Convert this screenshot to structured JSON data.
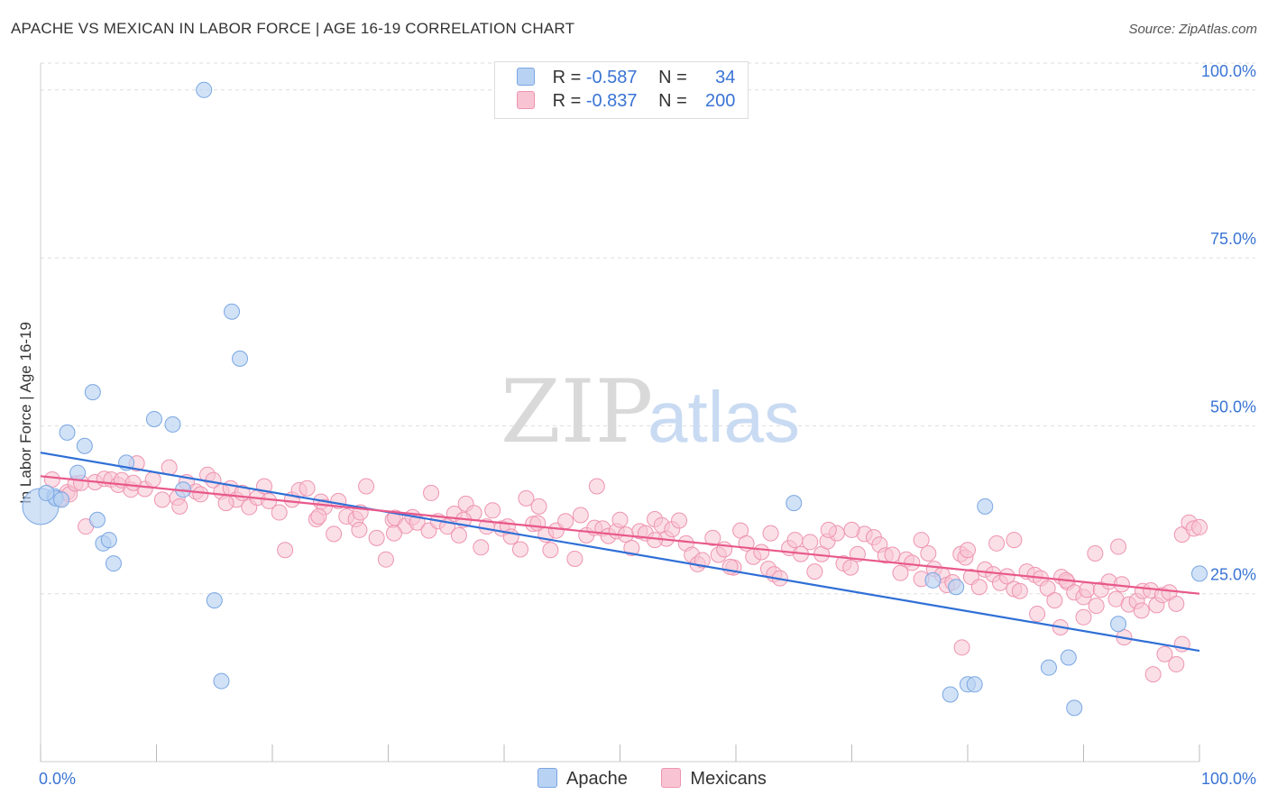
{
  "title": "APACHE VS MEXICAN IN LABOR FORCE | AGE 16-19 CORRELATION CHART",
  "source": "Source: ZipAtlas.com",
  "watermark": {
    "zip": "ZIP",
    "atlas": "atlas"
  },
  "legend": {
    "rows": [
      {
        "r_label": "R =",
        "r_value": "-0.587",
        "n_label": "N =",
        "n_value": "34",
        "color": "#a9c8f0"
      },
      {
        "r_label": "R =",
        "r_value": "-0.837",
        "n_label": "N =",
        "n_value": "200",
        "color": "#f7b8cb"
      }
    ]
  },
  "colors": {
    "apache_fill": "#b8d2f3",
    "apache_stroke": "#7aa6e2",
    "apache_line": "#2f6fd6",
    "mexican_fill": "#f8c4d3",
    "mexican_stroke": "#ee94b0",
    "mexican_line": "#e8588a",
    "tick_label": "#3a74d4",
    "grid": "#dddddd"
  },
  "chart_data": {
    "type": "scatter",
    "title": "APACHE VS MEXICAN IN LABOR FORCE | AGE 16-19 CORRELATION CHART",
    "xlabel": "",
    "ylabel": "In Labor Force | Age 16-19",
    "xlim": [
      0,
      100
    ],
    "ylim": [
      0,
      104
    ],
    "x_tick_labels": [
      "0.0%",
      "100.0%"
    ],
    "y_ticks": [
      25,
      50,
      75,
      100
    ],
    "y_tick_labels": [
      "25.0%",
      "50.0%",
      "75.0%",
      "100.0%"
    ],
    "grid": true,
    "legend_position": "bottom-center",
    "series": [
      {
        "name": "Apache",
        "points": [
          [
            0.0,
            38.0
          ],
          [
            1.2,
            39.5
          ],
          [
            1.3,
            39.2
          ],
          [
            1.8,
            39.0
          ],
          [
            2.3,
            49.0
          ],
          [
            3.2,
            43.0
          ],
          [
            3.8,
            47.0
          ],
          [
            4.5,
            55.0
          ],
          [
            4.9,
            36.0
          ],
          [
            5.4,
            32.5
          ],
          [
            5.9,
            33.0
          ],
          [
            6.3,
            29.5
          ],
          [
            7.4,
            44.5
          ],
          [
            9.8,
            51.0
          ],
          [
            11.4,
            50.2
          ],
          [
            12.3,
            40.5
          ],
          [
            14.1,
            100.0
          ],
          [
            15.0,
            24.0
          ],
          [
            15.6,
            12.0
          ],
          [
            16.5,
            67.0
          ],
          [
            17.2,
            60.0
          ],
          [
            65.0,
            38.5
          ],
          [
            77.0,
            27.0
          ],
          [
            78.5,
            10.0
          ],
          [
            79.0,
            26.0
          ],
          [
            80.0,
            11.5
          ],
          [
            80.6,
            11.5
          ],
          [
            81.5,
            38.0
          ],
          [
            87.0,
            14.0
          ],
          [
            88.7,
            15.5
          ],
          [
            89.2,
            8.0
          ],
          [
            93.0,
            20.5
          ],
          [
            100.0,
            28.0
          ],
          [
            0.5,
            40.0
          ]
        ]
      },
      {
        "name": "Mexicans",
        "points": [
          [
            1.0,
            42.0
          ],
          [
            1.7,
            39.2
          ],
          [
            2.3,
            40.1
          ],
          [
            2.5,
            39.8
          ],
          [
            3.0,
            41.4
          ],
          [
            3.9,
            35.0
          ],
          [
            4.7,
            41.6
          ],
          [
            5.5,
            42.1
          ],
          [
            6.1,
            42.0
          ],
          [
            6.7,
            41.2
          ],
          [
            7.0,
            41.9
          ],
          [
            7.8,
            40.5
          ],
          [
            8.3,
            44.4
          ],
          [
            9.0,
            40.6
          ],
          [
            9.7,
            42.0
          ],
          [
            10.5,
            39.0
          ],
          [
            11.1,
            43.8
          ],
          [
            11.8,
            39.3
          ],
          [
            12.6,
            41.6
          ],
          [
            13.4,
            40.2
          ],
          [
            13.8,
            39.8
          ],
          [
            14.4,
            42.7
          ],
          [
            14.9,
            41.9
          ],
          [
            15.6,
            40.2
          ],
          [
            16.4,
            40.7
          ],
          [
            16.9,
            39.0
          ],
          [
            17.4,
            40.0
          ],
          [
            18.0,
            37.9
          ],
          [
            18.7,
            39.3
          ],
          [
            19.3,
            41.0
          ],
          [
            19.7,
            38.8
          ],
          [
            20.6,
            37.1
          ],
          [
            21.1,
            31.5
          ],
          [
            21.7,
            39.0
          ],
          [
            22.3,
            40.4
          ],
          [
            23.0,
            40.7
          ],
          [
            23.8,
            36.1
          ],
          [
            24.2,
            38.7
          ],
          [
            24.5,
            37.9
          ],
          [
            25.3,
            33.9
          ],
          [
            25.7,
            38.8
          ],
          [
            26.4,
            36.5
          ],
          [
            27.2,
            36.1
          ],
          [
            27.6,
            37.1
          ],
          [
            28.1,
            41.0
          ],
          [
            29.0,
            33.3
          ],
          [
            29.8,
            30.1
          ],
          [
            30.4,
            36.0
          ],
          [
            30.6,
            36.3
          ],
          [
            31.5,
            35.1
          ],
          [
            32.1,
            36.4
          ],
          [
            32.5,
            35.6
          ],
          [
            33.5,
            34.4
          ],
          [
            33.7,
            40.0
          ],
          [
            34.3,
            35.8
          ],
          [
            35.1,
            35.0
          ],
          [
            35.7,
            36.9
          ],
          [
            36.1,
            33.7
          ],
          [
            36.7,
            38.4
          ],
          [
            37.4,
            37.0
          ],
          [
            38.0,
            31.9
          ],
          [
            38.5,
            35.0
          ],
          [
            39.0,
            37.4
          ],
          [
            39.8,
            34.7
          ],
          [
            40.3,
            35.0
          ],
          [
            40.6,
            33.5
          ],
          [
            41.4,
            31.6
          ],
          [
            41.9,
            39.2
          ],
          [
            42.5,
            35.4
          ],
          [
            42.9,
            35.5
          ],
          [
            43.6,
            33.8
          ],
          [
            44.0,
            31.5
          ],
          [
            44.5,
            34.4
          ],
          [
            45.3,
            35.8
          ],
          [
            46.1,
            30.2
          ],
          [
            46.6,
            36.7
          ],
          [
            47.1,
            33.7
          ],
          [
            47.8,
            34.8
          ],
          [
            48.5,
            34.7
          ],
          [
            49.0,
            33.6
          ],
          [
            49.7,
            34.3
          ],
          [
            50.0,
            36.0
          ],
          [
            50.5,
            33.8
          ],
          [
            51.0,
            31.8
          ],
          [
            51.7,
            34.3
          ],
          [
            52.2,
            34.0
          ],
          [
            53.0,
            36.1
          ],
          [
            53.6,
            35.2
          ],
          [
            54.0,
            33.2
          ],
          [
            54.5,
            34.6
          ],
          [
            55.1,
            35.9
          ],
          [
            55.7,
            32.5
          ],
          [
            56.2,
            30.8
          ],
          [
            56.7,
            29.4
          ],
          [
            57.1,
            30.0
          ],
          [
            58.0,
            33.3
          ],
          [
            58.5,
            30.8
          ],
          [
            59.0,
            31.6
          ],
          [
            59.8,
            28.9
          ],
          [
            60.4,
            34.4
          ],
          [
            60.9,
            32.5
          ],
          [
            61.5,
            30.5
          ],
          [
            62.2,
            31.2
          ],
          [
            62.8,
            28.7
          ],
          [
            63.3,
            27.9
          ],
          [
            63.8,
            27.3
          ],
          [
            64.6,
            31.8
          ],
          [
            65.1,
            33.0
          ],
          [
            65.6,
            30.9
          ],
          [
            66.4,
            32.7
          ],
          [
            66.8,
            28.3
          ],
          [
            67.4,
            30.9
          ],
          [
            67.9,
            32.8
          ],
          [
            68.7,
            34.0
          ],
          [
            69.3,
            29.5
          ],
          [
            69.9,
            28.9
          ],
          [
            70.5,
            30.9
          ],
          [
            71.1,
            33.9
          ],
          [
            71.9,
            33.4
          ],
          [
            72.4,
            32.3
          ],
          [
            72.9,
            30.7
          ],
          [
            73.5,
            30.8
          ],
          [
            74.2,
            28.1
          ],
          [
            74.7,
            30.1
          ],
          [
            75.2,
            29.6
          ],
          [
            76.0,
            27.2
          ],
          [
            76.6,
            31.0
          ],
          [
            77.1,
            28.7
          ],
          [
            77.8,
            27.8
          ],
          [
            78.2,
            26.3
          ],
          [
            78.7,
            26.7
          ],
          [
            79.4,
            30.9
          ],
          [
            79.8,
            30.4
          ],
          [
            80.3,
            27.5
          ],
          [
            81.0,
            26.0
          ],
          [
            81.5,
            28.6
          ],
          [
            82.2,
            27.9
          ],
          [
            82.8,
            26.6
          ],
          [
            83.4,
            27.6
          ],
          [
            84.0,
            25.7
          ],
          [
            84.5,
            25.4
          ],
          [
            85.1,
            28.3
          ],
          [
            85.8,
            27.8
          ],
          [
            86.3,
            27.3
          ],
          [
            86.9,
            25.8
          ],
          [
            87.5,
            24.0
          ],
          [
            88.1,
            27.5
          ],
          [
            88.6,
            26.7
          ],
          [
            89.2,
            25.2
          ],
          [
            90.0,
            24.5
          ],
          [
            90.3,
            25.6
          ],
          [
            91.1,
            23.2
          ],
          [
            91.5,
            25.6
          ],
          [
            92.2,
            26.8
          ],
          [
            92.8,
            24.2
          ],
          [
            93.3,
            26.4
          ],
          [
            93.9,
            23.4
          ],
          [
            94.6,
            23.9
          ],
          [
            95.1,
            25.4
          ],
          [
            95.8,
            25.5
          ],
          [
            96.3,
            23.3
          ],
          [
            96.8,
            24.8
          ],
          [
            97.4,
            25.2
          ],
          [
            98.0,
            23.5
          ],
          [
            98.5,
            33.8
          ],
          [
            99.1,
            35.6
          ],
          [
            99.5,
            34.7
          ],
          [
            100.0,
            34.9
          ],
          [
            79.5,
            17.0
          ],
          [
            93.5,
            18.5
          ],
          [
            95.0,
            22.5
          ],
          [
            97.0,
            16.0
          ],
          [
            98.0,
            14.5
          ],
          [
            98.5,
            17.5
          ],
          [
            96.0,
            13.0
          ],
          [
            90.0,
            21.5
          ],
          [
            88.0,
            20.0
          ],
          [
            86.0,
            22.0
          ],
          [
            91.0,
            31.0
          ],
          [
            93.0,
            32.0
          ],
          [
            84.0,
            33.0
          ],
          [
            82.5,
            32.5
          ],
          [
            80.0,
            31.5
          ],
          [
            88.5,
            27.0
          ],
          [
            76.0,
            33.0
          ],
          [
            70.0,
            34.5
          ],
          [
            68.0,
            34.5
          ],
          [
            63.0,
            34.0
          ],
          [
            59.5,
            29.0
          ],
          [
            53.0,
            33.0
          ],
          [
            48.0,
            41.0
          ],
          [
            43.0,
            38.0
          ],
          [
            36.5,
            36.0
          ],
          [
            30.5,
            34.0
          ],
          [
            27.5,
            34.5
          ],
          [
            24.0,
            36.5
          ],
          [
            16.0,
            38.5
          ],
          [
            12.0,
            38.0
          ],
          [
            8.0,
            41.5
          ],
          [
            3.5,
            41.5
          ]
        ]
      }
    ],
    "trend_lines": [
      {
        "series": "Apache",
        "x": [
          0,
          100
        ],
        "y": [
          46.0,
          16.5
        ]
      },
      {
        "series": "Mexicans",
        "x": [
          0,
          100
        ],
        "y": [
          42.5,
          25.0
        ]
      }
    ]
  }
}
